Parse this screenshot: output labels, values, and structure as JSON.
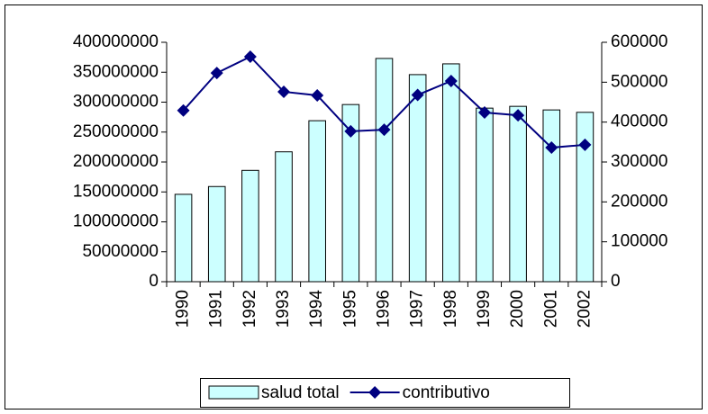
{
  "chart_data": {
    "type": "bar_line",
    "categories": [
      "1990",
      "1991",
      "1992",
      "1993",
      "1994",
      "1995",
      "1996",
      "1997",
      "1998",
      "1999",
      "2000",
      "2001",
      "2002"
    ],
    "series": [
      {
        "name": "salud total",
        "type": "bar",
        "color": "#ccffff",
        "values": [
          146000000,
          159000000,
          186000000,
          217000000,
          269000000,
          296000000,
          373000000,
          346000000,
          364000000,
          290000000,
          293000000,
          287000000,
          283000000
        ]
      },
      {
        "name": "contributivo",
        "type": "line",
        "axis": "y2",
        "color": "#000080",
        "values": [
          429000,
          523000,
          564000,
          476000,
          467000,
          377000,
          381000,
          468000,
          503000,
          424000,
          417000,
          336000,
          343000
        ]
      }
    ],
    "ylim": [
      0,
      400000000
    ],
    "yticks": [
      0,
      50000000,
      100000000,
      150000000,
      200000000,
      250000000,
      300000000,
      350000000,
      400000000
    ],
    "y2lim": [
      0,
      600000
    ],
    "y2ticks": [
      0,
      100000,
      200000,
      300000,
      400000,
      500000,
      600000
    ],
    "legend": "bottom"
  }
}
